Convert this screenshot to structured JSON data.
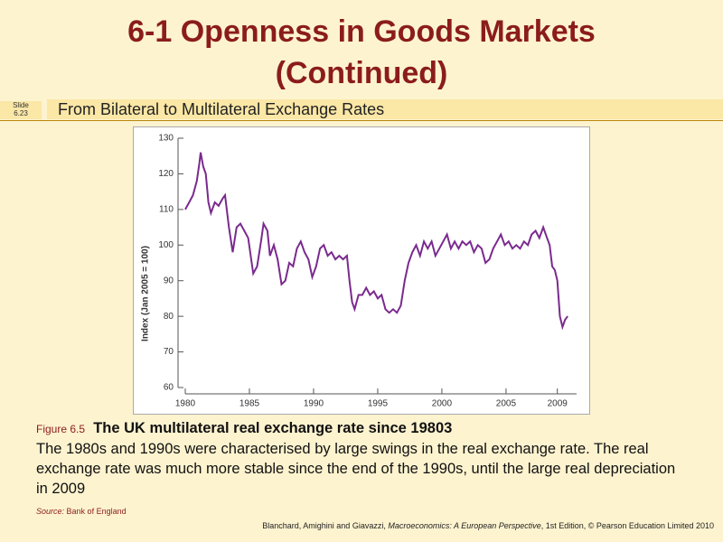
{
  "slide": {
    "title_line1": "6-1  Openness in Goods Markets",
    "title_line2": "(Continued)",
    "slide_label": [
      "Slide",
      "6.23"
    ],
    "subtitle": "From Bilateral to Multilateral Exchange Rates"
  },
  "chart_data": {
    "type": "line",
    "ylabel": "Index (Jan 2005 = 100)",
    "color": "#7a2a8e",
    "x": [
      1980.0,
      1980.3,
      1980.6,
      1980.9,
      1981.1,
      1981.2,
      1981.4,
      1981.6,
      1981.8,
      1982.0,
      1982.3,
      1982.6,
      1982.9,
      1983.1,
      1983.4,
      1983.7,
      1984.0,
      1984.3,
      1984.6,
      1984.9,
      1985.1,
      1985.3,
      1985.6,
      1985.9,
      1986.1,
      1986.4,
      1986.6,
      1986.9,
      1987.2,
      1987.5,
      1987.8,
      1988.1,
      1988.4,
      1988.7,
      1989.0,
      1989.3,
      1989.6,
      1989.9,
      1990.2,
      1990.5,
      1990.8,
      1991.1,
      1991.4,
      1991.7,
      1992.0,
      1992.3,
      1992.6,
      1992.8,
      1993.0,
      1993.2,
      1993.5,
      1993.8,
      1994.1,
      1994.4,
      1994.7,
      1995.0,
      1995.3,
      1995.6,
      1995.9,
      1996.2,
      1996.5,
      1996.8,
      1997.1,
      1997.4,
      1997.7,
      1998.0,
      1998.3,
      1998.6,
      1998.9,
      1999.2,
      1999.5,
      1999.8,
      2000.1,
      2000.4,
      2000.7,
      2001.0,
      2001.3,
      2001.6,
      2001.9,
      2002.2,
      2002.5,
      2002.8,
      2003.1,
      2003.4,
      2003.7,
      2004.0,
      2004.3,
      2004.6,
      2004.9,
      2005.2,
      2005.5,
      2005.8,
      2006.1,
      2006.4,
      2006.7,
      2007.0,
      2007.3,
      2007.6,
      2007.9,
      2008.2,
      2008.4,
      2008.6,
      2008.8,
      2009.0,
      2009.2,
      2009.4,
      2009.6,
      2009.8
    ],
    "values": [
      110,
      112,
      114,
      118,
      123,
      126,
      122,
      120,
      112,
      109,
      112,
      111,
      113,
      114,
      105,
      98,
      105,
      106,
      104,
      102,
      97,
      92,
      94,
      101,
      106,
      104,
      97,
      100,
      96,
      89,
      90,
      95,
      94,
      99,
      101,
      98,
      96,
      91,
      94,
      99,
      100,
      97,
      98,
      96,
      97,
      96,
      97,
      90,
      84,
      82,
      86,
      86,
      88,
      86,
      87,
      85,
      86,
      82,
      81,
      82,
      81,
      83,
      90,
      95,
      98,
      100,
      97,
      101,
      99,
      101,
      97,
      99,
      101,
      103,
      99,
      101,
      99,
      101,
      100,
      101,
      98,
      100,
      99,
      95,
      96,
      99,
      101,
      103,
      100,
      101,
      99,
      100,
      99,
      101,
      100,
      103,
      104,
      102,
      105,
      102,
      100,
      94,
      93,
      90,
      80,
      77,
      79,
      80
    ],
    "xlim": [
      1980,
      2010.5
    ],
    "ylim": [
      60,
      130
    ],
    "xticks": [
      1980,
      1985,
      1990,
      1995,
      2000,
      2005,
      2009
    ],
    "yticks": [
      60,
      70,
      80,
      90,
      100,
      110,
      120,
      130
    ],
    "grid": false
  },
  "caption": {
    "figure": "Figure 6.5",
    "heading": "The UK multilateral real exchange rate since 19803",
    "text": "The 1980s and 1990s were characterised by large swings in the real exchange rate. The real exchange rate was much more stable since the end of the 1990s, until the large real depreciation in 2009",
    "source_label": "Source:",
    "source": "Bank of England"
  },
  "footer": {
    "authors": "Blanchard, Amighini and Giavazzi, ",
    "book": "Macroeconomics: A European Perspective",
    "edition": ", 1st Edition, © Pearson Education Limited 2010"
  }
}
